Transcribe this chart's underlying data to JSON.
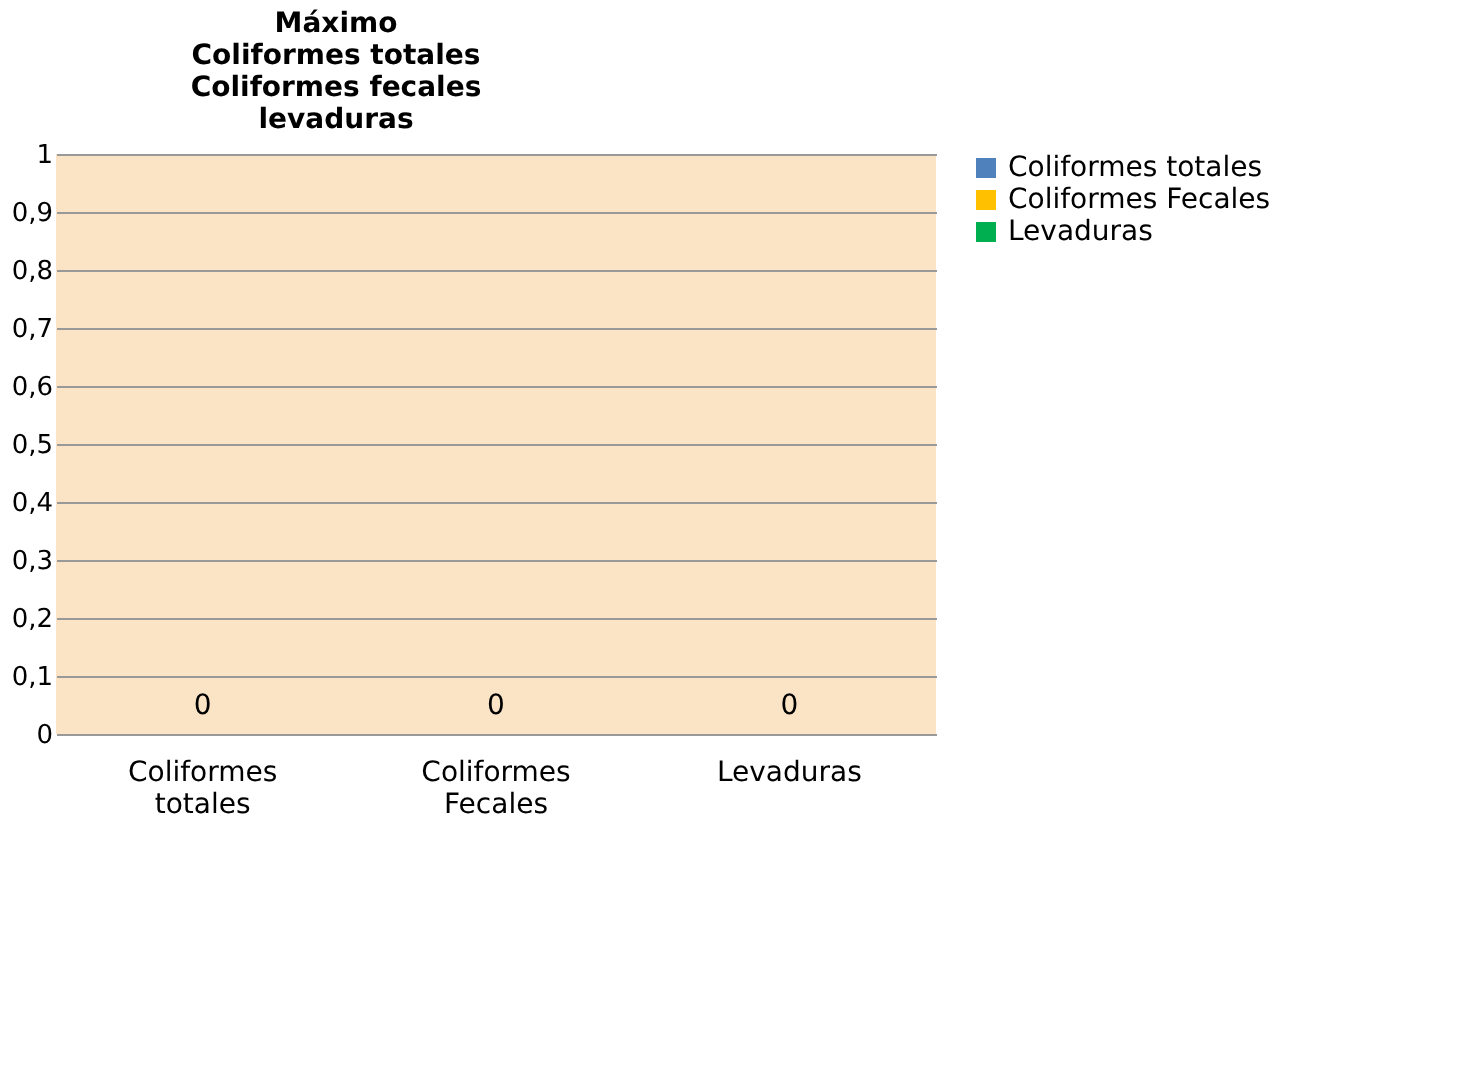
{
  "chart_data": {
    "type": "bar",
    "title": "Máximo\nColiformes totales\nColiformes  fecales\nlevaduras",
    "categories": [
      "Coliformes totales",
      "Coliformes Fecales",
      "Levaduras"
    ],
    "series": [
      {
        "name": "Coliformes totales",
        "color": "#4f81bd",
        "values": [
          0,
          null,
          null
        ]
      },
      {
        "name": "Coliformes  Fecales",
        "color": "#ffc000",
        "values": [
          null,
          0,
          null
        ]
      },
      {
        "name": "Levaduras",
        "color": "#00b050",
        "values": [
          null,
          null,
          0
        ]
      }
    ],
    "ylim": [
      0,
      1
    ],
    "yticks": [
      0,
      {
        "value": 0.1,
        "label": "0,1"
      },
      {
        "value": 0.2,
        "label": "0,2"
      },
      {
        "value": 0.3,
        "label": "0,3"
      },
      {
        "value": 0.4,
        "label": "0,4"
      },
      {
        "value": 0.5,
        "label": "0,5"
      },
      {
        "value": 0.6,
        "label": "0,6"
      },
      {
        "value": 0.7,
        "label": "0,7"
      },
      {
        "value": 0.8,
        "label": "0,8"
      },
      {
        "value": 0.9,
        "label": "0,9"
      },
      1
    ],
    "grid": "y",
    "legend": "right",
    "data_labels": true
  }
}
